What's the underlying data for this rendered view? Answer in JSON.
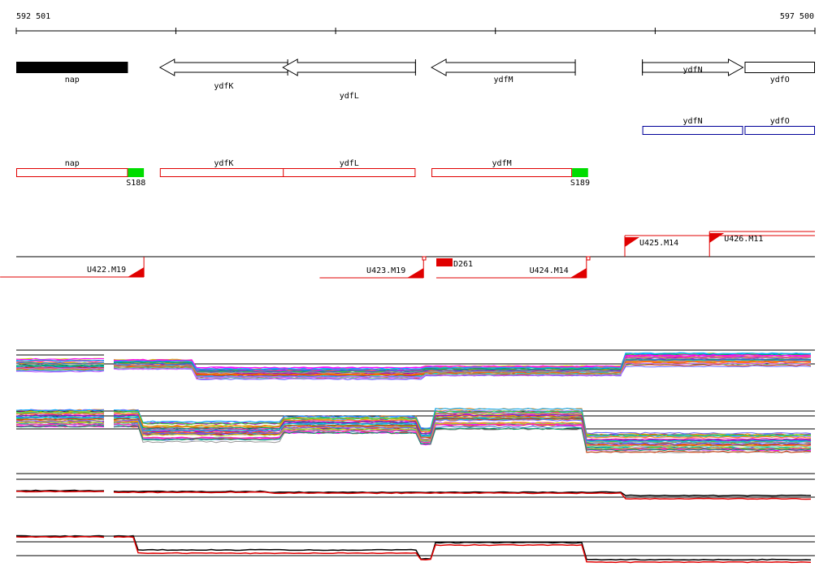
{
  "ruler": {
    "start_label": "592 501",
    "end_label": "597 500",
    "start_bp": 592501,
    "end_bp": 597500
  },
  "colors": {
    "gene_outline": "#000000",
    "feature_red": "#e00000",
    "feature_blue": "#000099",
    "terminator_green": "#00dd00",
    "track_lines": "#000000"
  },
  "genes": [
    {
      "name": "nap",
      "strand": "+",
      "style": "filled",
      "start": 592501,
      "end": 593200
    },
    {
      "name": "ydfK",
      "strand": "-",
      "style": "arrow",
      "start": 593400,
      "end": 594200
    },
    {
      "name": "ydfL",
      "strand": "-",
      "style": "arrow",
      "start": 594170,
      "end": 595000
    },
    {
      "name": "ydfM",
      "strand": "-",
      "style": "arrow",
      "start": 595100,
      "end": 596000
    },
    {
      "name": "ydfN",
      "strand": "+",
      "style": "arrow",
      "start": 596420,
      "end": 597050
    },
    {
      "name": "ydfO",
      "strand": "+",
      "style": "box",
      "start": 597060,
      "end": 597500
    }
  ],
  "operons_blue": [
    {
      "name": "ydfN",
      "start": 596420,
      "end": 597050
    },
    {
      "name": "ydfO",
      "start": 597060,
      "end": 597500
    }
  ],
  "operons_red": [
    {
      "name": "nap",
      "start": 592501,
      "end": 593200
    },
    {
      "name": "ydfK",
      "start": 593400,
      "end": 594200
    },
    {
      "name": "ydfL",
      "start": 594170,
      "end": 595000
    },
    {
      "name": "ydfM",
      "start": 595100,
      "end": 595980
    }
  ],
  "terminators": [
    {
      "name": "S188",
      "start": 593200,
      "end": 593300
    },
    {
      "name": "S189",
      "start": 595980,
      "end": 596080
    }
  ],
  "transcripts": [
    {
      "name": "U422.M19",
      "strand": "-",
      "start": 592400,
      "end": 593300
    },
    {
      "name": "U423.M19",
      "strand": "-",
      "start": 594400,
      "end": 595050
    },
    {
      "name": "U424.M14",
      "strand": "-",
      "start": 595130,
      "end": 596070
    },
    {
      "name": "U425.M14",
      "strand": "+",
      "start": 596310,
      "end": 597500
    },
    {
      "name": "U426.M11",
      "strand": "+",
      "start": 596840,
      "end": 597500
    }
  ],
  "small_feature": {
    "name": "D261",
    "start": 595130,
    "end": 595230
  }
}
